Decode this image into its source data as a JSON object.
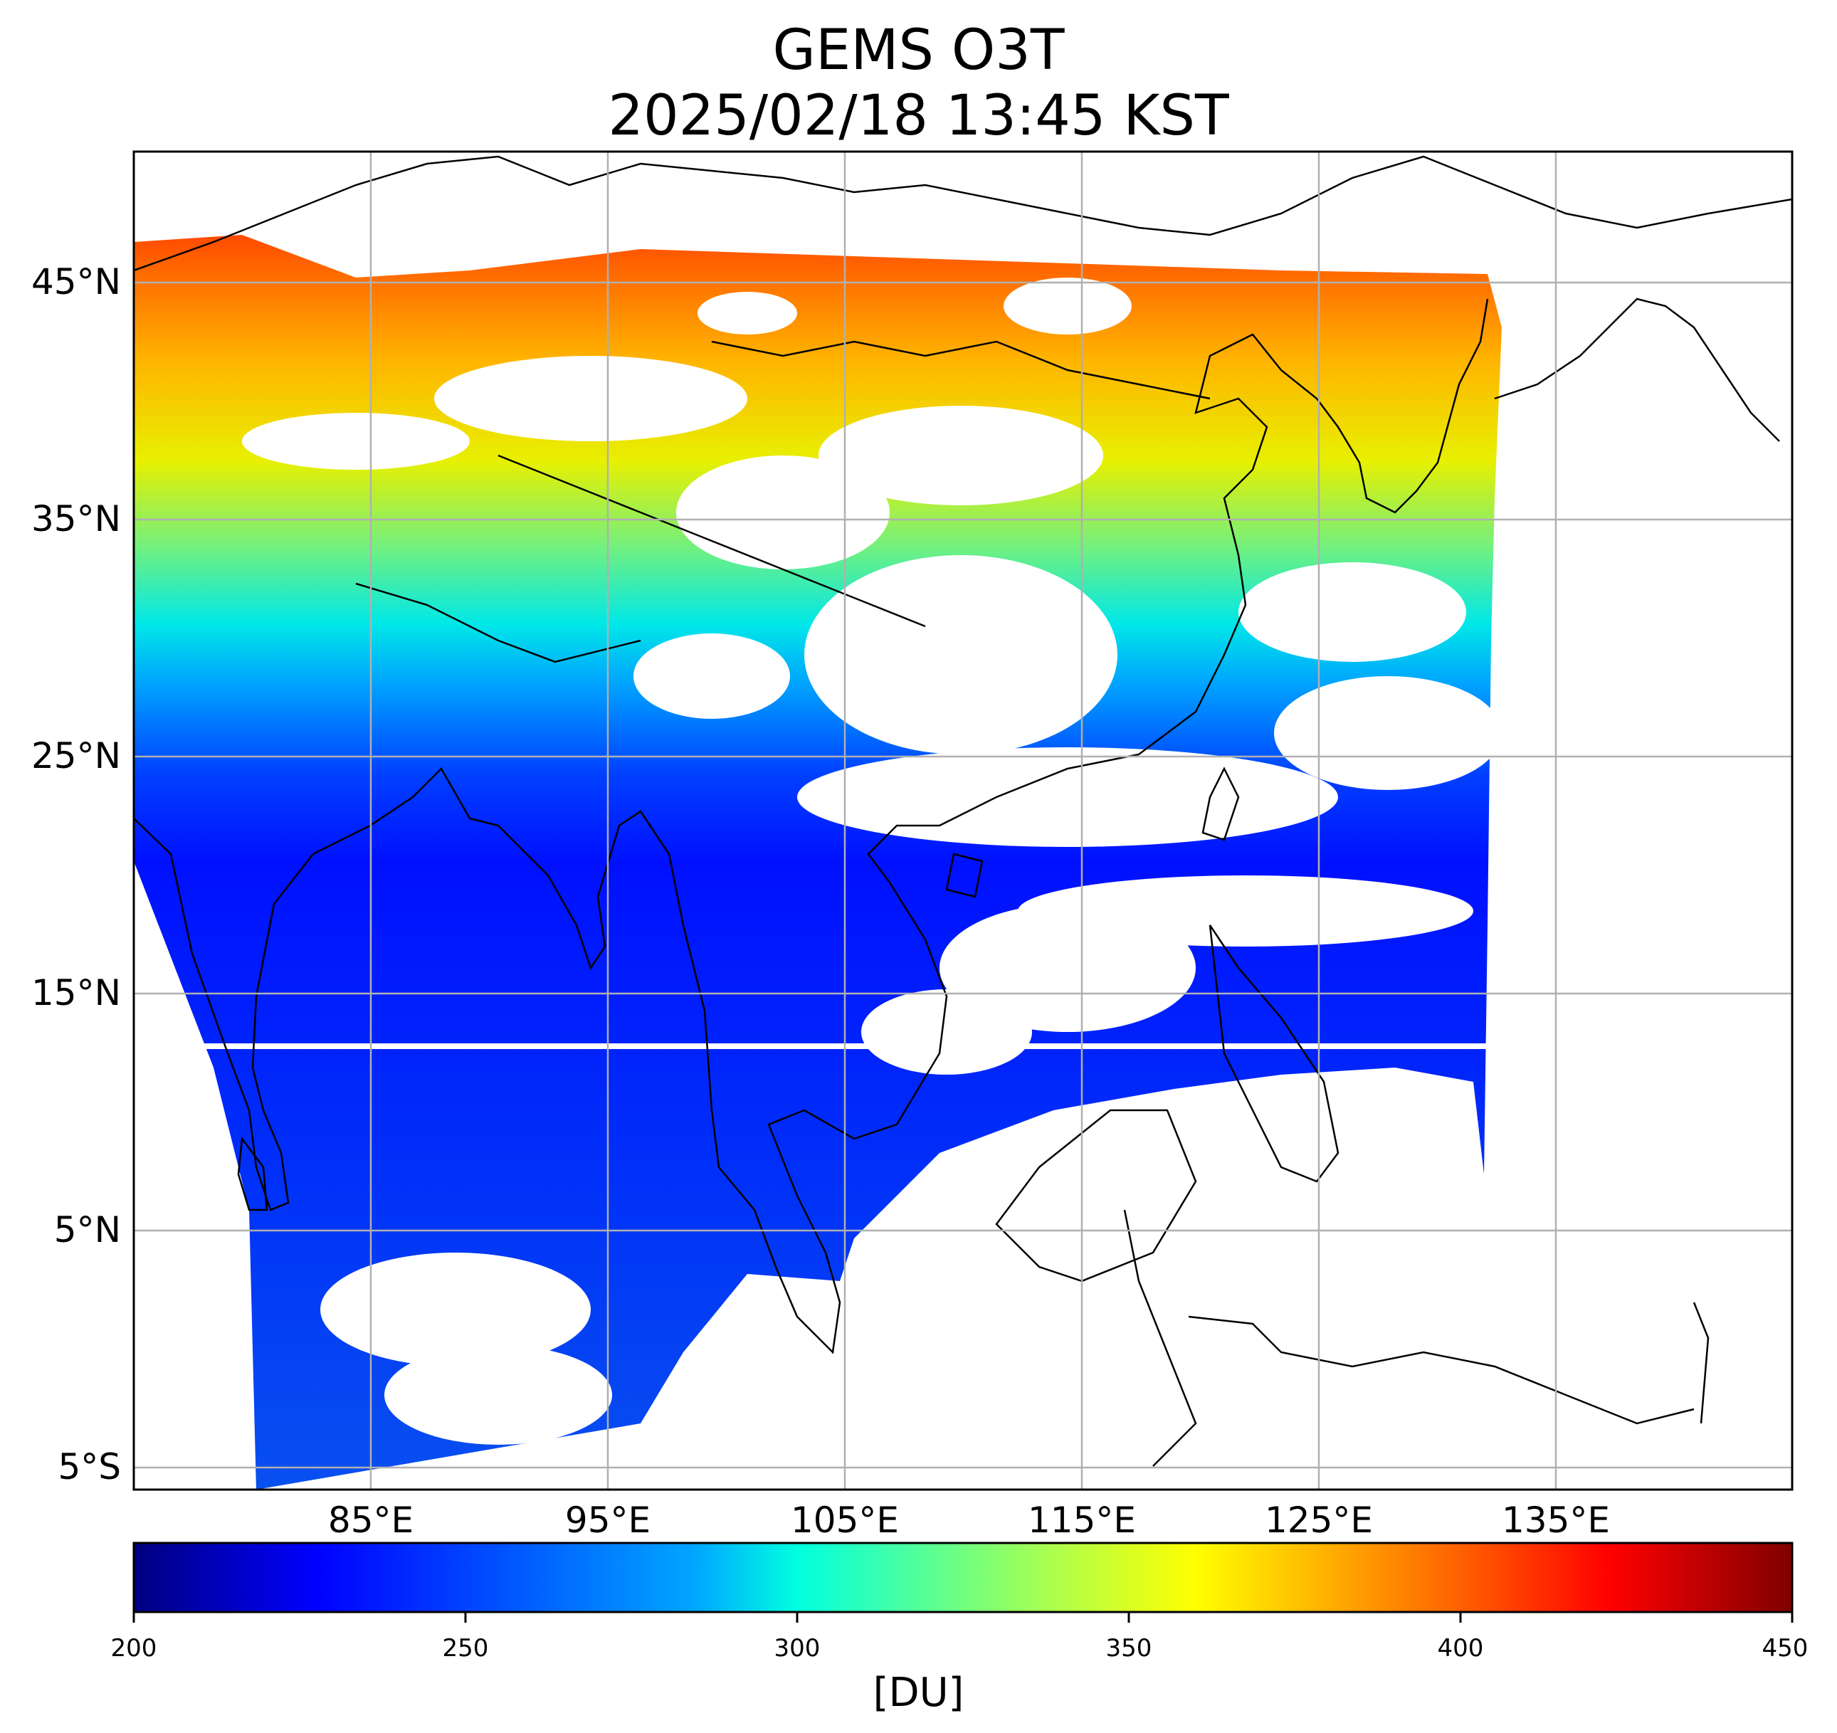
{
  "title": {
    "line1": "GEMS O3T",
    "line2": "2025/02/18 13:45 KST"
  },
  "map": {
    "lat_labels": [
      "45°N",
      "35°N",
      "25°N",
      "15°N",
      "5°N",
      "5°S"
    ],
    "lon_labels": [
      "85°E",
      "95°E",
      "105°E",
      "115°E",
      "125°E",
      "135°E"
    ],
    "gridlines": true,
    "lon_range": [
      75,
      145
    ],
    "lat_range": [
      -5.9,
      50.5
    ]
  },
  "colorbar": {
    "ticks": [
      "200",
      "250",
      "300",
      "350",
      "400",
      "450"
    ],
    "unit": "[DU]",
    "range": [
      200,
      450
    ],
    "colors": [
      "#000080",
      "#0000ff",
      "#0080ff",
      "#00ffff",
      "#80ff80",
      "#ffff00",
      "#ff8000",
      "#ff0000",
      "#800000"
    ]
  },
  "field_colors": {
    "north": "#ff5a00",
    "upper_mid": "#ffd000",
    "mid": "#7cf07c",
    "lower_mid": "#00c8ff",
    "tropics": "#0018ff",
    "tropics_light": "#0a4cf5"
  }
}
